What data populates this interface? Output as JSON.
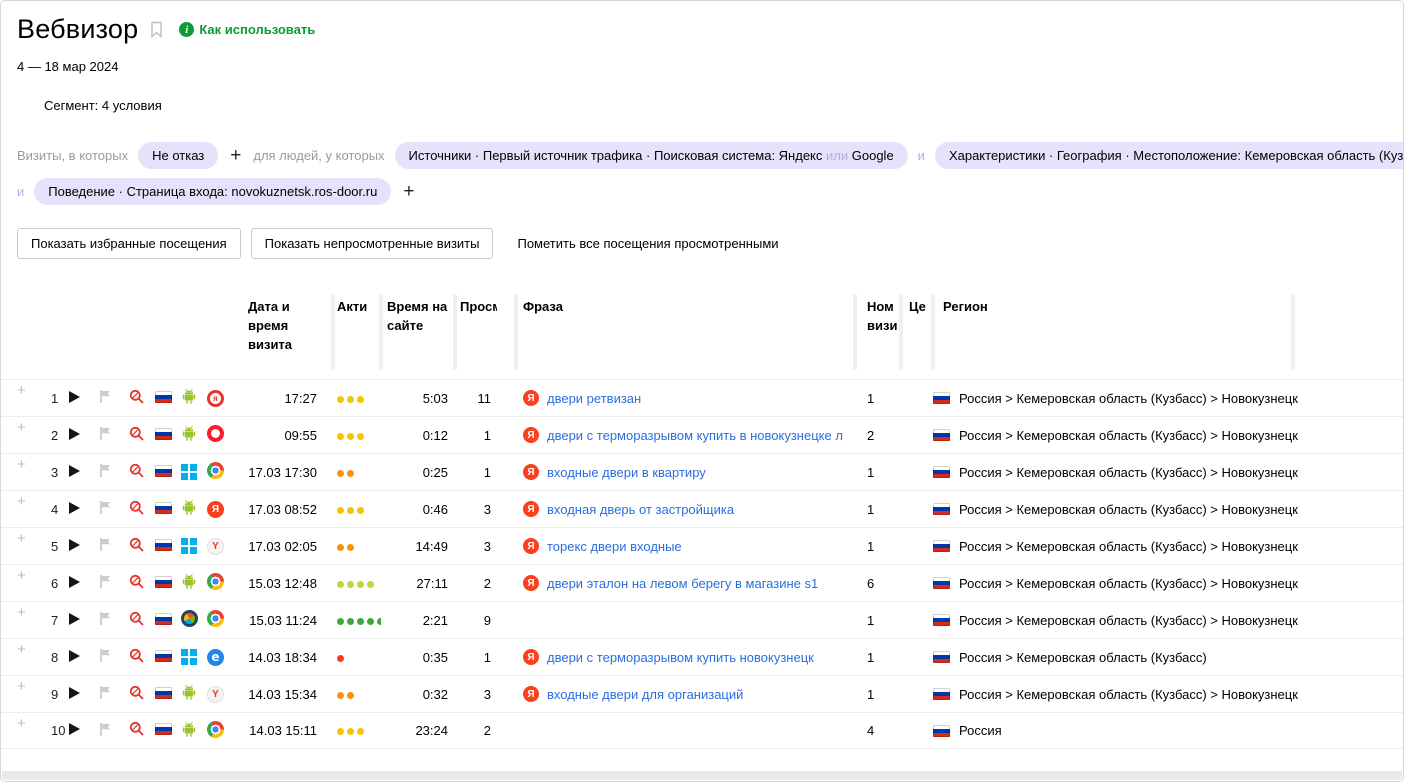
{
  "header": {
    "title": "Вебвизор",
    "help_link": "Как использовать"
  },
  "date_range": "4 — 18 мар 2024",
  "segment": "Сегмент: 4 условия",
  "filters": {
    "visits_label": "Визиты, в которых",
    "people_label": "для людей, у которых",
    "and_connector": "и",
    "add_button": "+",
    "chips": {
      "not_bounce": "Не отказ",
      "source_prefix": "Источники · Первый источник трафика · Поисковая система: Яндекс",
      "source_or": "или",
      "source_suffix": "Google",
      "geo": "Характеристики · География · Местоположение: Кемеровская область (Кузбасс)",
      "behavior": "Поведение · Страница входа: novokuznetsk.ros-door.ru"
    }
  },
  "actions": {
    "show_favorites": "Показать избранные посещения",
    "show_unviewed": "Показать непросмотренные визиты",
    "mark_all_viewed": "Пометить все посещения просмотренными"
  },
  "colors": {
    "accent_green": "#0b9c35",
    "chip_bg": "#e7e2fc",
    "link_blue": "#2a6edd",
    "activity_yellow": "#f6c500",
    "activity_orange": "#ff9200",
    "activity_red": "#f43b2a",
    "activity_yellow_green": "#c4d344",
    "activity_green": "#3ea83e"
  },
  "table": {
    "columns": {
      "date": "Дата и время визита",
      "activity": "Акти",
      "time_on_site": "Время на сайте",
      "views": "Просмо",
      "phrase": "Фраза",
      "visit_number": "Ном визи",
      "goals": "Це",
      "region": "Регион"
    },
    "row_icon_names": [
      "expand-plus-icon",
      "play-button",
      "flag-icon",
      "zoom-visit-icon",
      "russia-flag-icon",
      "os-icon",
      "browser-icon"
    ],
    "rows": [
      {
        "num": "1",
        "os": "android",
        "browser": "yandex-mobile",
        "datetime": "17:27",
        "activity_count": 3,
        "activity_color": "#f6c500",
        "time_on_site": "5:03",
        "views": "11",
        "phrase": "двери ретвизан",
        "visit_number": "1",
        "region": "Россия > Кемеровская область (Кузбасс) > Новокузнецк"
      },
      {
        "num": "2",
        "os": "android",
        "browser": "opera",
        "datetime": "09:55",
        "activity_count": 3,
        "activity_color": "#f6c500",
        "time_on_site": "0:12",
        "views": "1",
        "phrase": "двери с терморазрывом купить в новокузнецке леруа ме...",
        "visit_number": "2",
        "region": "Россия > Кемеровская область (Кузбасс) > Новокузнецк"
      },
      {
        "num": "3",
        "os": "windows",
        "browser": "chrome",
        "datetime": "17.03 17:30",
        "activity_count": 2,
        "activity_color": "#ff9200",
        "time_on_site": "0:25",
        "views": "1",
        "phrase": "входные двери в квартиру",
        "visit_number": "1",
        "region": "Россия > Кемеровская область (Кузбасс) > Новокузнецк"
      },
      {
        "num": "4",
        "os": "android",
        "browser": "yandex-app",
        "datetime": "17.03 08:52",
        "activity_count": 3,
        "activity_color": "#f6c500",
        "time_on_site": "0:46",
        "views": "3",
        "phrase": "входная дверь от застройщика",
        "visit_number": "1",
        "region": "Россия > Кемеровская область (Кузбасс) > Новокузнецк"
      },
      {
        "num": "5",
        "os": "windows",
        "browser": "yandex",
        "datetime": "17.03 02:05",
        "activity_count": 2,
        "activity_color": "#ff9200",
        "time_on_site": "14:49",
        "views": "3",
        "phrase": "торекс двери входные",
        "visit_number": "1",
        "region": "Россия > Кемеровская область (Кузбасс) > Новокузнецк"
      },
      {
        "num": "6",
        "os": "android",
        "browser": "chrome",
        "datetime": "15.03 12:48",
        "activity_count": 4,
        "activity_color": "#c4d344",
        "time_on_site": "27:11",
        "views": "2",
        "phrase": "двери эталон на левом берегу в магазине s1",
        "visit_number": "6",
        "region": "Россия > Кемеровская область (Кузбасс) > Новокузнецк"
      },
      {
        "num": "7",
        "os": "windows7",
        "browser": "chrome",
        "datetime": "15.03 11:24",
        "activity_count": 5,
        "activity_color": "#3ea83e",
        "time_on_site": "2:21",
        "views": "9",
        "phrase": "",
        "visit_number": "1",
        "region": "Россия > Кемеровская область (Кузбасс) > Новокузнецк"
      },
      {
        "num": "8",
        "os": "windows",
        "browser": "edge",
        "datetime": "14.03 18:34",
        "activity_count": 1,
        "activity_color": "#f43b2a",
        "time_on_site": "0:35",
        "views": "1",
        "phrase": "двери с терморазрывом купить новокузнецк",
        "visit_number": "1",
        "region": "Россия > Кемеровская область (Кузбасс)"
      },
      {
        "num": "9",
        "os": "android",
        "browser": "yandex",
        "datetime": "14.03 15:34",
        "activity_count": 2,
        "activity_color": "#ff9200",
        "time_on_site": "0:32",
        "views": "3",
        "phrase": "входные двери для организаций",
        "visit_number": "1",
        "region": "Россия > Кемеровская область (Кузбасс) > Новокузнецк"
      },
      {
        "num": "10",
        "os": "android",
        "browser": "chrome",
        "datetime": "14.03 15:11",
        "activity_count": 3,
        "activity_color": "#f6c500",
        "time_on_site": "23:24",
        "views": "2",
        "phrase": "",
        "visit_number": "4",
        "region": "Россия"
      }
    ]
  }
}
